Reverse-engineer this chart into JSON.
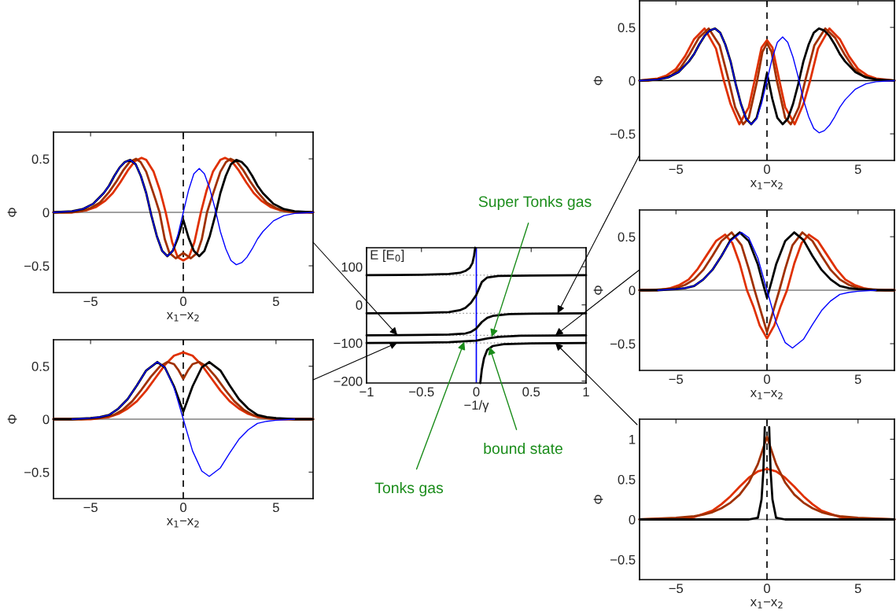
{
  "chart_data": [
    {
      "type": "line",
      "xlabel": "x$_{1}$−x$_{2}$",
      "ylabel": "Φ",
      "xlim": [
        -7,
        7
      ],
      "ylim": [
        -0.75,
        0.75
      ],
      "xticks": [
        {
          "value": -5,
          "label": "−5"
        },
        0,
        5
      ],
      "yticks": [
        {
          "value": -0.5,
          "label": "−0.5"
        },
        0,
        0.5
      ],
      "ref_lines": [
        {
          "axis": "y",
          "value": 0,
          "color": "#808080",
          "line_style": "solid"
        },
        {
          "axis": "x",
          "value": 0,
          "color": "#000000",
          "line_style": "dashed"
        }
      ],
      "series": [
        {
          "color": "#0000ff",
          "x": [
            -7,
            -6,
            -5.43,
            -4.86,
            -4.29,
            -4,
            -3.72,
            -3.43,
            -3.15,
            -2.86,
            -2.57,
            -2.29,
            -2,
            -1.72,
            -1.43,
            -1.14,
            -0.86,
            -0.57,
            -0.29,
            0,
            0.29,
            0.57,
            0.86,
            1.14,
            1.43,
            1.72,
            2,
            2.29,
            2.57,
            2.86,
            3.15,
            3.43,
            3.72,
            4,
            4.29,
            4.86,
            5.43,
            6,
            7
          ],
          "values": [
            0,
            0.01,
            0.03,
            0.08,
            0.18,
            0.25,
            0.34,
            0.42,
            0.47,
            0.49,
            0.45,
            0.34,
            0.18,
            -0.03,
            -0.22,
            -0.36,
            -0.41,
            -0.36,
            -0.21,
            0,
            0.21,
            0.36,
            0.41,
            0.36,
            0.22,
            0.03,
            -0.18,
            -0.34,
            -0.45,
            -0.49,
            -0.47,
            -0.42,
            -0.34,
            -0.25,
            -0.18,
            -0.08,
            -0.03,
            -0.01,
            0
          ]
        },
        {
          "color": "#e03000",
          "x": [
            -7,
            -6,
            -5.2,
            -4.7,
            -4.2,
            -3.8,
            -3.4,
            -3,
            -2.6,
            -2.25,
            -2,
            -1.6,
            -1.25,
            -0.95,
            -0.6,
            -0.3,
            0,
            0.3,
            0.6,
            0.95,
            1.25,
            1.6,
            2,
            2.25,
            2.6,
            3,
            3.4,
            3.8,
            4.2,
            4.7,
            5.2,
            6,
            7
          ],
          "values": [
            0,
            0,
            0.02,
            0.05,
            0.11,
            0.18,
            0.28,
            0.39,
            0.48,
            0.51,
            0.49,
            0.38,
            0.2,
            0,
            -0.28,
            -0.42,
            -0.45,
            -0.42,
            -0.28,
            0,
            0.2,
            0.38,
            0.49,
            0.51,
            0.48,
            0.39,
            0.28,
            0.18,
            0.11,
            0.05,
            0.02,
            0,
            0
          ]
        },
        {
          "color": "#a03000",
          "x": [
            -7,
            -6,
            -5.5,
            -5,
            -4.5,
            -4,
            -3.6,
            -3.25,
            -2.9,
            -2.55,
            -2.3,
            -2,
            -1.5,
            -1.28,
            -1,
            -0.75,
            -0.4,
            0,
            0.4,
            0.75,
            1,
            1.28,
            1.5,
            2,
            2.3,
            2.55,
            2.9,
            3.25,
            3.6,
            4,
            4.5,
            5,
            5.5,
            6,
            7
          ],
          "values": [
            0,
            0,
            0.01,
            0.04,
            0.09,
            0.19,
            0.29,
            0.39,
            0.47,
            0.5,
            0.47,
            0.38,
            0.12,
            0,
            -0.25,
            -0.38,
            -0.43,
            -0.38,
            -0.43,
            -0.38,
            -0.25,
            0,
            0.12,
            0.38,
            0.47,
            0.5,
            0.47,
            0.39,
            0.29,
            0.19,
            0.09,
            0.04,
            0.01,
            0,
            0
          ]
        },
        {
          "color": "#000000",
          "x": [
            -7,
            -6,
            -5.43,
            -4.86,
            -4.29,
            -4,
            -3.72,
            -3.43,
            -3.15,
            -2.86,
            -2.57,
            -2.29,
            -2,
            -1.72,
            -1.43,
            -1.14,
            -0.86,
            -0.57,
            -0.29,
            0,
            0.29,
            0.57,
            0.86,
            1.14,
            1.43,
            1.72,
            2,
            2.29,
            2.57,
            2.86,
            3.15,
            3.43,
            3.72,
            4,
            4.29,
            4.86,
            5.43,
            6,
            7
          ],
          "values": [
            0,
            0.01,
            0.03,
            0.08,
            0.18,
            0.25,
            0.34,
            0.42,
            0.47,
            0.49,
            0.45,
            0.34,
            0.18,
            -0.03,
            -0.22,
            -0.36,
            -0.41,
            -0.36,
            -0.24,
            -0.07,
            -0.24,
            -0.36,
            -0.41,
            -0.36,
            -0.22,
            -0.03,
            0.18,
            0.34,
            0.45,
            0.49,
            0.47,
            0.42,
            0.34,
            0.25,
            0.18,
            0.08,
            0.03,
            0.01,
            0
          ]
        }
      ]
    },
    {
      "type": "line",
      "xlabel": "x$_{1}$−x$_{2}$",
      "ylabel": "Φ",
      "xlim": [
        -7,
        7
      ],
      "ylim": [
        -0.75,
        0.75
      ],
      "xticks": [
        {
          "value": -5,
          "label": "−5"
        },
        0,
        5
      ],
      "yticks": [
        {
          "value": -0.5,
          "label": "−0.5"
        },
        0,
        0.5
      ],
      "ref_lines": [
        {
          "axis": "y",
          "value": 0,
          "color": "#808080",
          "line_style": "solid"
        },
        {
          "axis": "x",
          "value": 0,
          "color": "#000000",
          "line_style": "dashed"
        }
      ],
      "series": [
        {
          "color": "#0000ff",
          "x": [
            -6,
            -5,
            -4.5,
            -4,
            -3.5,
            -3,
            -2.5,
            -2,
            -1.4,
            -1,
            -0.5,
            0,
            0.5,
            1,
            1.4,
            2,
            2.5,
            3,
            3.5,
            4,
            4.5,
            5,
            6
          ],
          "values": [
            0,
            0.01,
            0.02,
            0.04,
            0.1,
            0.19,
            0.32,
            0.46,
            0.54,
            0.49,
            0.3,
            0,
            -0.3,
            -0.49,
            -0.54,
            -0.46,
            -0.32,
            -0.19,
            -0.1,
            -0.04,
            -0.02,
            -0.01,
            0
          ]
        },
        {
          "color": "#e03000",
          "x": [
            -7,
            -5,
            -4,
            -3.5,
            -3,
            -2.5,
            -2,
            -1.5,
            -1,
            -0.5,
            0,
            0.5,
            1,
            1.5,
            2,
            2.5,
            3,
            3.5,
            4,
            5,
            7
          ],
          "values": [
            0,
            0,
            0.02,
            0.05,
            0.1,
            0.17,
            0.27,
            0.39,
            0.51,
            0.6,
            0.63,
            0.6,
            0.51,
            0.39,
            0.27,
            0.17,
            0.1,
            0.05,
            0.02,
            0,
            0
          ]
        },
        {
          "color": "#a03000",
          "x": [
            -7,
            -5.5,
            -4.5,
            -3.75,
            -3.25,
            -2.75,
            -2.25,
            -1.75,
            -1.25,
            -0.85,
            -0.5,
            -0.25,
            0,
            0.25,
            0.5,
            0.85,
            1.25,
            1.75,
            2.25,
            2.75,
            3.25,
            3.75,
            4.5,
            5.5,
            7
          ],
          "values": [
            0,
            0,
            0.01,
            0.04,
            0.09,
            0.17,
            0.28,
            0.4,
            0.5,
            0.54,
            0.52,
            0.46,
            0.38,
            0.46,
            0.52,
            0.54,
            0.5,
            0.4,
            0.28,
            0.17,
            0.09,
            0.04,
            0.01,
            0,
            0
          ]
        },
        {
          "color": "#000000",
          "x": [
            -7,
            -6,
            -5,
            -4.5,
            -4,
            -3.5,
            -3,
            -2.5,
            -2,
            -1.4,
            -1,
            -0.5,
            0,
            0.5,
            1,
            1.4,
            2,
            2.5,
            3,
            3.5,
            4,
            4.5,
            5,
            6,
            7
          ],
          "values": [
            0,
            0,
            0.01,
            0.02,
            0.04,
            0.1,
            0.19,
            0.32,
            0.46,
            0.54,
            0.49,
            0.31,
            0.07,
            0.31,
            0.49,
            0.54,
            0.46,
            0.32,
            0.19,
            0.1,
            0.04,
            0.02,
            0.01,
            0,
            0
          ]
        }
      ]
    },
    {
      "type": "line",
      "xlabel": "−1/γ",
      "ylabel": "E [E$_{0}$]",
      "xlim": [
        -1,
        1
      ],
      "ylim": [
        -205,
        150
      ],
      "xticks": [
        {
          "value": -1,
          "label": "−1"
        },
        {
          "value": -0.5,
          "label": "−0.5"
        },
        0,
        0.5,
        1
      ],
      "yticks": [
        {
          "value": -200,
          "label": "−200"
        },
        {
          "value": -100,
          "label": "−100"
        },
        0,
        100
      ],
      "ref_lines": [
        {
          "axis": "y",
          "value": 78,
          "color": "#808080",
          "line_style": "dotted"
        },
        {
          "axis": "y",
          "value": -22,
          "color": "#808080",
          "line_style": "dotted"
        },
        {
          "axis": "y",
          "value": -80,
          "color": "#808080",
          "line_style": "dotted"
        },
        {
          "axis": "y",
          "value": -100,
          "color": "#808080",
          "line_style": "dotted"
        },
        {
          "axis": "x",
          "value": 0,
          "color": "#0000ff",
          "line_style": "solid"
        }
      ],
      "annotations": [
        {
          "text": "Super Tonks gas",
          "x": 0.14,
          "y": -84
        },
        {
          "text": "Tonks gas",
          "x": -0.11,
          "y": -97
        },
        {
          "text": "bound state",
          "x": 0.12,
          "y": -110
        }
      ],
      "series": [
        {
          "color": "#000000",
          "x": [
            -1,
            -0.5,
            -0.25,
            -0.15,
            -0.1,
            -0.06,
            -0.035,
            -0.02,
            -0.01
          ],
          "values": [
            78,
            79,
            81,
            84,
            89,
            97,
            110,
            130,
            150
          ]
        },
        {
          "color": "#000000",
          "x": [
            -1,
            -0.5,
            -0.25,
            -0.15,
            -0.1,
            -0.05,
            0,
            0.05,
            0.1,
            0.2,
            0.5,
            1
          ],
          "values": [
            -22,
            -21,
            -19,
            -14,
            -8,
            5,
            26,
            60,
            72,
            76,
            77,
            78
          ]
        },
        {
          "color": "#000000",
          "x": [
            -1,
            -0.5,
            -0.25,
            -0.1,
            -0.05,
            0,
            0.05,
            0.1,
            0.15,
            0.3,
            0.5,
            1
          ],
          "values": [
            -80,
            -79,
            -78,
            -75,
            -71,
            -62,
            -45,
            -34,
            -29,
            -24,
            -23,
            -22
          ]
        },
        {
          "color": "#000000",
          "x": [
            -1,
            -0.5,
            -0.25,
            0,
            0.1,
            0.2,
            0.4,
            1
          ],
          "values": [
            -100,
            -99,
            -98,
            -94,
            -88,
            -84,
            -81,
            -80
          ]
        },
        {
          "color": "#000000",
          "x": [
            0.036,
            0.05,
            0.07,
            0.1,
            0.15,
            0.25,
            0.5,
            1
          ],
          "values": [
            -205,
            -170,
            -140,
            -118,
            -108,
            -103,
            -101,
            -100
          ]
        }
      ]
    },
    {
      "type": "line",
      "xlabel": "x$_{1}$−x$_{2}$",
      "ylabel": "Φ",
      "xlim": [
        -7,
        7
      ],
      "ylim": [
        -0.75,
        0.75
      ],
      "xticks": [
        {
          "value": -5,
          "label": "−5"
        },
        0,
        5
      ],
      "yticks": [
        {
          "value": -0.5,
          "label": "−0.5"
        },
        0,
        0.5
      ],
      "ref_lines": [
        {
          "axis": "y",
          "value": 0,
          "color": "#000000",
          "line_style": "solid"
        },
        {
          "axis": "x",
          "value": 0,
          "color": "#000000",
          "line_style": "dashed"
        }
      ],
      "series": [
        {
          "color": "#0000ff",
          "x": [
            -7,
            -6,
            -5.43,
            -4.86,
            -4.29,
            -4,
            -3.72,
            -3.43,
            -3.15,
            -2.86,
            -2.57,
            -2.29,
            -2,
            -1.72,
            -1.43,
            -1.14,
            -0.86,
            -0.57,
            -0.29,
            0,
            0.29,
            0.57,
            0.86,
            1.14,
            1.43,
            1.72,
            2,
            2.29,
            2.57,
            2.86,
            3.15,
            3.43,
            3.72,
            4,
            4.29,
            4.86,
            5.43,
            6,
            7
          ],
          "values": [
            0,
            0.01,
            0.03,
            0.08,
            0.18,
            0.25,
            0.34,
            0.42,
            0.47,
            0.49,
            0.45,
            0.34,
            0.18,
            -0.03,
            -0.22,
            -0.36,
            -0.41,
            -0.36,
            -0.21,
            0,
            0.21,
            0.36,
            0.41,
            0.36,
            0.22,
            0.03,
            -0.18,
            -0.34,
            -0.45,
            -0.49,
            -0.47,
            -0.42,
            -0.34,
            -0.25,
            -0.18,
            -0.08,
            -0.03,
            -0.01,
            0
          ]
        },
        {
          "color": "#e03000",
          "x": [
            -7,
            -6,
            -5.5,
            -5,
            -4.5,
            -4,
            -3.43,
            -2.8,
            -2.37,
            -2,
            -1.52,
            -1,
            -0.68,
            -0.3,
            0,
            0.3,
            0.68,
            1,
            1.52,
            2,
            2.37,
            2.8,
            3.43,
            4,
            4.5,
            5,
            5.5,
            6,
            7
          ],
          "values": [
            0,
            0.02,
            0.05,
            0.11,
            0.23,
            0.39,
            0.49,
            0.3,
            0,
            -0.22,
            -0.41,
            -0.25,
            0,
            0.31,
            0.38,
            0.31,
            0,
            -0.25,
            -0.41,
            -0.22,
            0,
            0.3,
            0.49,
            0.39,
            0.23,
            0.11,
            0.05,
            0.02,
            0
          ]
        },
        {
          "color": "#a03000",
          "x": [
            -7,
            -6.5,
            -5.75,
            -5.25,
            -4.75,
            -4.25,
            -3.75,
            -3.2,
            -2.6,
            -2.1,
            -1.75,
            -1.31,
            -1,
            -0.54,
            -0.25,
            0,
            0.25,
            0.54,
            1,
            1.31,
            1.75,
            2.1,
            2.6,
            3.2,
            3.75,
            4.25,
            4.75,
            5.25,
            5.75,
            6.5,
            7
          ],
          "values": [
            0,
            0,
            0.02,
            0.05,
            0.12,
            0.25,
            0.4,
            0.49,
            0.33,
            0,
            -0.25,
            -0.41,
            -0.35,
            0,
            0.27,
            0.35,
            0.27,
            0,
            -0.35,
            -0.41,
            -0.25,
            0,
            0.33,
            0.49,
            0.4,
            0.25,
            0.12,
            0.05,
            0.02,
            0,
            0
          ]
        },
        {
          "color": "#000000",
          "x": [
            -7,
            -6,
            -5.43,
            -4.86,
            -4.29,
            -4,
            -3.72,
            -3.43,
            -3.15,
            -2.86,
            -2.57,
            -2.29,
            -2,
            -1.72,
            -1.43,
            -1.14,
            -0.86,
            -0.57,
            -0.29,
            0,
            0.29,
            0.57,
            0.86,
            1.14,
            1.43,
            1.72,
            2,
            2.29,
            2.57,
            2.86,
            3.15,
            3.43,
            3.72,
            4,
            4.29,
            4.86,
            5.43,
            6,
            7
          ],
          "values": [
            0,
            0.01,
            0.03,
            0.08,
            0.18,
            0.25,
            0.34,
            0.42,
            0.47,
            0.49,
            0.45,
            0.34,
            0.18,
            -0.03,
            -0.22,
            -0.36,
            -0.41,
            -0.35,
            -0.17,
            0.07,
            -0.17,
            -0.35,
            -0.41,
            -0.36,
            -0.22,
            -0.03,
            0.18,
            0.34,
            0.45,
            0.49,
            0.47,
            0.42,
            0.34,
            0.25,
            0.18,
            0.08,
            0.03,
            0.01,
            0
          ]
        }
      ]
    },
    {
      "type": "line",
      "xlabel": "x$_{1}$−x$_{2}$",
      "ylabel": "Φ",
      "xlim": [
        -7,
        7
      ],
      "ylim": [
        -0.75,
        0.75
      ],
      "xticks": [
        {
          "value": -5,
          "label": "−5"
        },
        0,
        5
      ],
      "yticks": [
        {
          "value": -0.5,
          "label": "−0.5"
        },
        0,
        0.5
      ],
      "ref_lines": [
        {
          "axis": "y",
          "value": 0,
          "color": "#808080",
          "line_style": "solid"
        },
        {
          "axis": "x",
          "value": 0,
          "color": "#000000",
          "line_style": "dashed"
        }
      ],
      "series": [
        {
          "color": "#0000ff",
          "x": [
            -6,
            -5,
            -4.5,
            -4,
            -3.5,
            -3,
            -2.5,
            -2,
            -1.4,
            -1,
            -0.5,
            0,
            0.5,
            1,
            1.4,
            2,
            2.5,
            3,
            3.5,
            4,
            4.5,
            5,
            6
          ],
          "values": [
            0,
            0.01,
            0.02,
            0.04,
            0.1,
            0.19,
            0.32,
            0.46,
            0.54,
            0.49,
            0.3,
            0,
            -0.3,
            -0.49,
            -0.54,
            -0.46,
            -0.32,
            -0.19,
            -0.1,
            -0.04,
            -0.02,
            -0.01,
            0
          ]
        },
        {
          "color": "#e03000",
          "x": [
            -7,
            -6,
            -5.3,
            -4.8,
            -4.3,
            -3.8,
            -3.3,
            -2.8,
            -2.3,
            -1.9,
            -1.5,
            -1.1,
            -0.75,
            -0.4,
            0,
            0.4,
            0.75,
            1.1,
            1.5,
            1.9,
            2.3,
            2.8,
            3.3,
            3.8,
            4.3,
            4.8,
            5.3,
            6,
            7
          ],
          "values": [
            0,
            0,
            0.02,
            0.05,
            0.1,
            0.2,
            0.33,
            0.46,
            0.52,
            0.44,
            0.25,
            0,
            -0.15,
            -0.33,
            -0.45,
            -0.33,
            -0.15,
            0,
            0.25,
            0.44,
            0.52,
            0.46,
            0.33,
            0.2,
            0.1,
            0.05,
            0.02,
            0,
            0
          ]
        },
        {
          "color": "#a03000",
          "x": [
            -7,
            -6.5,
            -5.5,
            -5,
            -4.5,
            -4,
            -3.5,
            -3,
            -2.5,
            -1.94,
            -1.4,
            -1,
            -0.68,
            -0.3,
            0,
            0.3,
            0.68,
            1,
            1.4,
            1.94,
            2.5,
            3,
            3.5,
            4,
            4.5,
            5,
            5.5,
            6.5,
            7
          ],
          "values": [
            0,
            0,
            0.01,
            0.02,
            0.05,
            0.1,
            0.19,
            0.32,
            0.46,
            0.54,
            0.42,
            0.2,
            0,
            -0.22,
            -0.39,
            -0.22,
            0,
            0.2,
            0.42,
            0.54,
            0.46,
            0.32,
            0.19,
            0.1,
            0.05,
            0.02,
            0.01,
            0,
            0
          ]
        },
        {
          "color": "#000000",
          "x": [
            -7,
            -6,
            -5,
            -4.5,
            -4,
            -3.5,
            -3,
            -2.5,
            -2,
            -1.5,
            -1,
            -0.5,
            -0.25,
            0,
            0.25,
            0.5,
            1,
            1.5,
            2,
            2.5,
            3,
            3.5,
            4,
            4.5,
            5,
            6,
            7
          ],
          "values": [
            0,
            0,
            0.01,
            0.02,
            0.04,
            0.1,
            0.19,
            0.32,
            0.47,
            0.54,
            0.46,
            0.24,
            0.08,
            -0.07,
            0.08,
            0.24,
            0.46,
            0.54,
            0.47,
            0.32,
            0.19,
            0.1,
            0.04,
            0.02,
            0.01,
            0,
            0
          ]
        }
      ]
    },
    {
      "type": "line",
      "xlabel": "x$_{1}$−x$_{2}$",
      "ylabel": "Φ",
      "xlim": [
        -7,
        7
      ],
      "ylim": [
        -0.75,
        1.25
      ],
      "xticks": [
        {
          "value": -5,
          "label": "−5"
        },
        0,
        5
      ],
      "yticks": [
        {
          "value": -0.5,
          "label": "−0.5"
        },
        0,
        0.5,
        1
      ],
      "ref_lines": [
        {
          "axis": "y",
          "value": 0,
          "color": "#808080",
          "line_style": "solid"
        },
        {
          "axis": "x",
          "value": 0,
          "color": "#000000",
          "line_style": "dashed"
        }
      ],
      "series": [
        {
          "color": "#e03000",
          "x": [
            -7,
            -5,
            -4,
            -3,
            -2.5,
            -2,
            -1.5,
            -1,
            -0.5,
            0,
            0.5,
            1,
            1.5,
            2,
            2.5,
            3,
            4,
            5,
            7
          ],
          "values": [
            0,
            0.01,
            0.03,
            0.11,
            0.19,
            0.29,
            0.41,
            0.52,
            0.6,
            0.63,
            0.6,
            0.52,
            0.41,
            0.29,
            0.19,
            0.11,
            0.03,
            0.01,
            0
          ]
        },
        {
          "color": "#a03000",
          "x": [
            -7,
            -6,
            -5,
            -4,
            -3.5,
            -3,
            -2.5,
            -2,
            -1.5,
            -1,
            -0.5,
            0,
            0.5,
            1,
            1.5,
            2,
            2.5,
            3,
            3.5,
            4,
            5,
            6,
            7
          ],
          "values": [
            0,
            0.01,
            0.02,
            0.04,
            0.06,
            0.09,
            0.14,
            0.21,
            0.31,
            0.46,
            0.69,
            1.03,
            0.69,
            0.46,
            0.31,
            0.21,
            0.14,
            0.09,
            0.06,
            0.04,
            0.02,
            0.01,
            0
          ]
        },
        {
          "color": "#000000",
          "x": [
            -7,
            -1,
            -0.5,
            -0.3,
            -0.2,
            -0.12,
            0,
            0.12,
            0.2,
            0.3,
            0.5,
            1,
            7
          ],
          "values": [
            0,
            0,
            0.02,
            0.25,
            0.6,
            1.15,
            null,
            1.15,
            0.6,
            0.25,
            0.02,
            0,
            0
          ]
        }
      ]
    }
  ]
}
